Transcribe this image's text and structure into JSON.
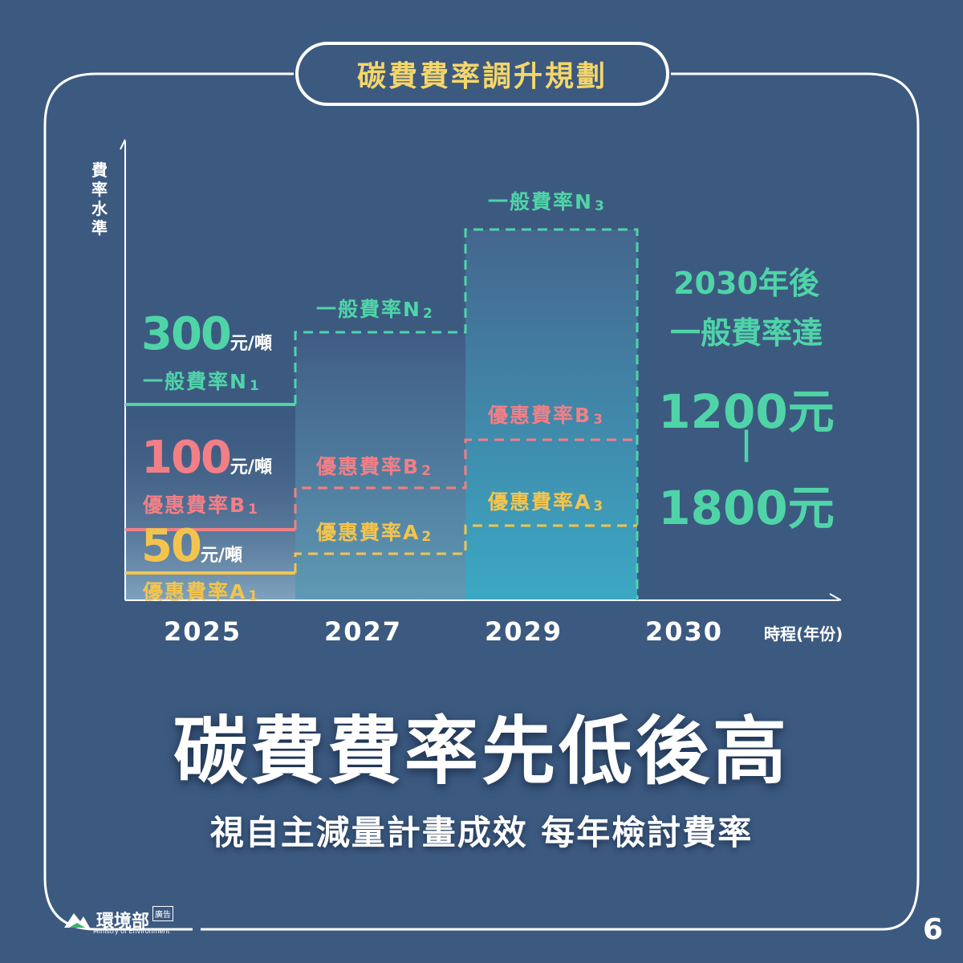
{
  "title_pill": "碳費費率調升規劃",
  "colors": {
    "background": "#3c5a80",
    "teal": "#4fd4a8",
    "pink": "#f27f86",
    "gold": "#f3c44d",
    "title_text": "#f5d66a"
  },
  "chart_data": {
    "type": "step",
    "ylabel": "費率水準",
    "xlabel": "時程(年份)",
    "x_ticks": [
      "2025",
      "2027",
      "2029",
      "2030"
    ],
    "series": [
      {
        "name": "一般費率",
        "color": "#4fd4a8",
        "segments": [
          {
            "label_main": "一般費率N",
            "label_sub": "1",
            "value": "300",
            "unit": "元/噸",
            "level": 300
          },
          {
            "label_main": "一般費率N",
            "label_sub": "2"
          },
          {
            "label_main": "一般費率N",
            "label_sub": "3"
          }
        ]
      },
      {
        "name": "優惠費率B",
        "color": "#f27f86",
        "segments": [
          {
            "label_main": "優惠費率B",
            "label_sub": "1",
            "value": "100",
            "unit": "元/噸",
            "level": 100
          },
          {
            "label_main": "優惠費率B",
            "label_sub": "2"
          },
          {
            "label_main": "優惠費率B",
            "label_sub": "3"
          }
        ]
      },
      {
        "name": "優惠費率A",
        "color": "#f3c44d",
        "segments": [
          {
            "label_main": "優惠費率A",
            "label_sub": "1",
            "value": "50",
            "unit": "元/噸",
            "level": 50
          },
          {
            "label_main": "優惠費率A",
            "label_sub": "2"
          },
          {
            "label_main": "優惠費率A",
            "label_sub": "3"
          }
        ]
      }
    ],
    "annotation": {
      "line1": "2030年後",
      "line2": "一般費率達",
      "value_low": "1200元",
      "dash": "|",
      "value_high": "1800元"
    }
  },
  "headline": "碳費費率先低後高",
  "subline": "視自主減量計畫成效 每年檢討費率",
  "logo": {
    "name": "環境部",
    "badge": "廣告",
    "sub": "Ministry of Environment"
  },
  "page_number": "6"
}
